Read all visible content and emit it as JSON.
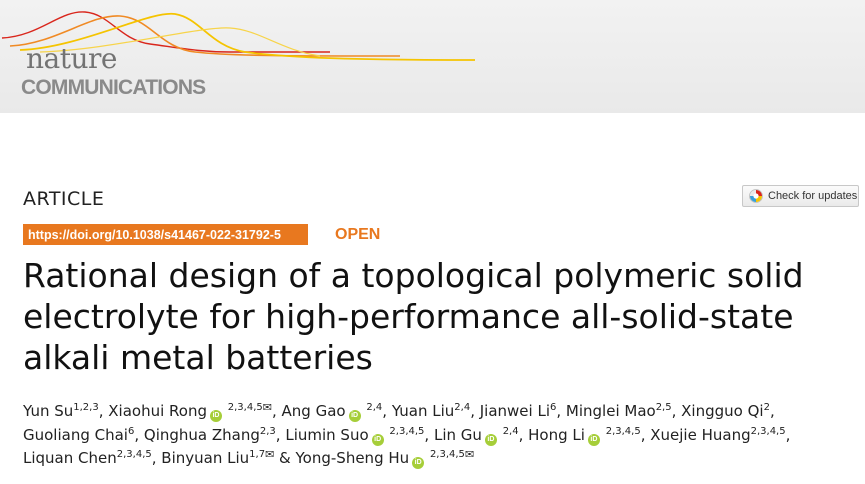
{
  "journal": {
    "name_line1": "nature",
    "name_line2": "COMMUNICATIONS"
  },
  "article": {
    "type": "ARTICLE",
    "doi": "https://doi.org/10.1038/s41467-022-31792-5",
    "access": "OPEN",
    "check_updates_label": "Check for updates",
    "title_lines": [
      "Rational design of a topological polymeric solid",
      "electrolyte for high-performance all-solid-state",
      "alkali metal batteries"
    ]
  },
  "authors": {
    "orcid_glyph": "iD",
    "mail_glyph": "✉",
    "list": [
      {
        "name": "Yun Su",
        "aff": "1,2,3",
        "orcid": false,
        "mail": false,
        "sep": ", "
      },
      {
        "name": "Xiaohui Rong",
        "aff": "2,3,4,5",
        "orcid": true,
        "mail": true,
        "sep": ", "
      },
      {
        "name": "Ang Gao",
        "aff": "2,4",
        "orcid": true,
        "mail": false,
        "sep": ", "
      },
      {
        "name": "Yuan Liu",
        "aff": "2,4",
        "orcid": false,
        "mail": false,
        "sep": ", "
      },
      {
        "name": "Jianwei Li",
        "aff": "6",
        "orcid": false,
        "mail": false,
        "sep": ", "
      },
      {
        "name": "Minglei Mao",
        "aff": "2,5",
        "orcid": false,
        "mail": false,
        "sep": ", "
      },
      {
        "name": "Xingguo Qi",
        "aff": "2",
        "orcid": false,
        "mail": false,
        "sep": ", "
      },
      {
        "name": "Guoliang Chai",
        "aff": "6",
        "orcid": false,
        "mail": false,
        "sep": ", "
      },
      {
        "name": "Qinghua Zhang",
        "aff": "2,3",
        "orcid": false,
        "mail": false,
        "sep": ", "
      },
      {
        "name": "Liumin Suo",
        "aff": "2,3,4,5",
        "orcid": true,
        "mail": false,
        "sep": ", "
      },
      {
        "name": "Lin Gu",
        "aff": "2,4",
        "orcid": true,
        "mail": false,
        "sep": ", "
      },
      {
        "name": "Hong Li",
        "aff": "2,3,4,5",
        "orcid": true,
        "mail": false,
        "sep": ", "
      },
      {
        "name": "Xuejie Huang",
        "aff": "2,3,4,5",
        "orcid": false,
        "mail": false,
        "sep": ","
      },
      {
        "name": "Liquan Chen",
        "aff": "2,3,4,5",
        "orcid": false,
        "mail": false,
        "sep": ", "
      },
      {
        "name": "Binyuan Liu",
        "aff": "1,7",
        "orcid": false,
        "mail": true,
        "sep": " & "
      },
      {
        "name": "Yong-Sheng Hu",
        "aff": "2,3,4,5",
        "orcid": true,
        "mail": true,
        "sep": ""
      }
    ],
    "line_breaks_after": [
      6,
      12
    ]
  },
  "colors": {
    "accent_orange": "#e8781f",
    "orcid_green": "#a6ce39",
    "wave_red": "#d9261c",
    "wave_orange": "#f08a24",
    "wave_yellow": "#f5c400"
  }
}
